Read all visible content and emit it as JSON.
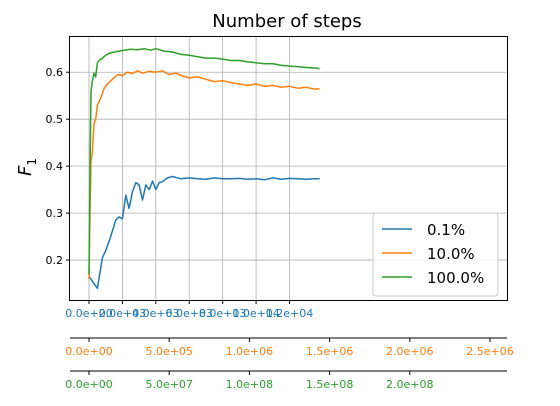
{
  "chart_data": {
    "type": "line",
    "title": "Number of steps",
    "ylabel": "F",
    "ylabel_subscript": "1",
    "ylim": [
      0.115,
      0.675
    ],
    "yticks": [
      0.2,
      0.3,
      0.4,
      0.5,
      0.6
    ],
    "ytick_labels": [
      "0.2",
      "0.3",
      "0.4",
      "0.5",
      "0.6"
    ],
    "grid": true,
    "legend_position": "lower-right",
    "x_axes": [
      {
        "color": "#1f77b4",
        "max": 24000,
        "ticks": [
          0,
          2000,
          4000,
          6000,
          8000,
          10000,
          12000
        ],
        "tick_labels": [
          "0.0e+00",
          "2.0e+03",
          "4.0e+03",
          "6.0e+03",
          "8.0e+03",
          "1.0e+04",
          "1.2e+04"
        ]
      },
      {
        "color": "#ff7f0e",
        "max": 2500000,
        "ticks": [
          0,
          500000,
          1000000,
          1500000,
          2000000,
          2500000
        ],
        "tick_labels": [
          "0.0e+00",
          "5.0e+05",
          "1.0e+06",
          "1.5e+06",
          "2.0e+06",
          "2.5e+06"
        ]
      },
      {
        "color": "#2ca02c",
        "max": 250000000,
        "ticks": [
          0,
          50000000,
          100000000,
          150000000,
          200000000
        ],
        "tick_labels": [
          "0.0e+00",
          "5.0e+07",
          "1.0e+08",
          "1.5e+08",
          "2.0e+08"
        ]
      }
    ],
    "series": [
      {
        "name": "0.1%",
        "color": "#1f77b4",
        "x": [
          0,
          200,
          500,
          800,
          1000,
          1300,
          1600,
          1800,
          2000,
          2200,
          2400,
          2600,
          2800,
          3000,
          3200,
          3400,
          3600,
          3800,
          4000,
          4200,
          4400,
          4700,
          5000,
          5500,
          6000,
          6500,
          7000,
          7500,
          8000,
          8500,
          9000,
          9500,
          10000,
          10500,
          11000,
          11500,
          12000,
          12500,
          13000,
          13500,
          13800
        ],
        "y": [
          0.165,
          0.155,
          0.14,
          0.205,
          0.22,
          0.25,
          0.285,
          0.292,
          0.288,
          0.338,
          0.31,
          0.345,
          0.365,
          0.36,
          0.328,
          0.36,
          0.35,
          0.368,
          0.35,
          0.365,
          0.367,
          0.375,
          0.378,
          0.373,
          0.375,
          0.373,
          0.372,
          0.375,
          0.373,
          0.373,
          0.374,
          0.372,
          0.373,
          0.371,
          0.375,
          0.372,
          0.374,
          0.373,
          0.372,
          0.373,
          0.373
        ]
      },
      {
        "name": "10.0%",
        "color": "#ff7f0e",
        "x": [
          0,
          60,
          120,
          200,
          300,
          400,
          500,
          700,
          900,
          1100,
          1300,
          1500,
          1700,
          2000,
          2300,
          2600,
          2900,
          3200,
          3600,
          4000,
          4400,
          4800,
          5200,
          5600,
          6000,
          6500,
          7000,
          7500,
          8000,
          8500,
          9000,
          9500,
          10000,
          10500,
          11000,
          11500,
          12000,
          12500,
          13000,
          13500,
          13800
        ],
        "y": [
          0.16,
          0.3,
          0.41,
          0.43,
          0.49,
          0.5,
          0.53,
          0.545,
          0.565,
          0.575,
          0.582,
          0.588,
          0.595,
          0.593,
          0.6,
          0.597,
          0.603,
          0.598,
          0.602,
          0.6,
          0.603,
          0.595,
          0.598,
          0.592,
          0.588,
          0.59,
          0.585,
          0.58,
          0.582,
          0.578,
          0.575,
          0.572,
          0.575,
          0.57,
          0.572,
          0.568,
          0.57,
          0.566,
          0.568,
          0.564,
          0.565
        ]
      },
      {
        "name": "100.0%",
        "color": "#2ca02c",
        "x": [
          0,
          60,
          120,
          200,
          300,
          400,
          500,
          600,
          800,
          1000,
          1200,
          1500,
          1800,
          2100,
          2500,
          2900,
          3300,
          3700,
          4000,
          4500,
          5000,
          5500,
          6000,
          6500,
          7000,
          7500,
          8000,
          8500,
          9000,
          9500,
          10000,
          10500,
          11000,
          11500,
          12000,
          12500,
          13000,
          13500,
          13800
        ],
        "y": [
          0.17,
          0.39,
          0.56,
          0.58,
          0.598,
          0.59,
          0.62,
          0.625,
          0.63,
          0.636,
          0.64,
          0.643,
          0.645,
          0.647,
          0.649,
          0.648,
          0.65,
          0.647,
          0.65,
          0.645,
          0.643,
          0.638,
          0.636,
          0.633,
          0.63,
          0.63,
          0.628,
          0.625,
          0.625,
          0.622,
          0.62,
          0.618,
          0.618,
          0.615,
          0.613,
          0.612,
          0.61,
          0.609,
          0.608
        ]
      }
    ]
  }
}
